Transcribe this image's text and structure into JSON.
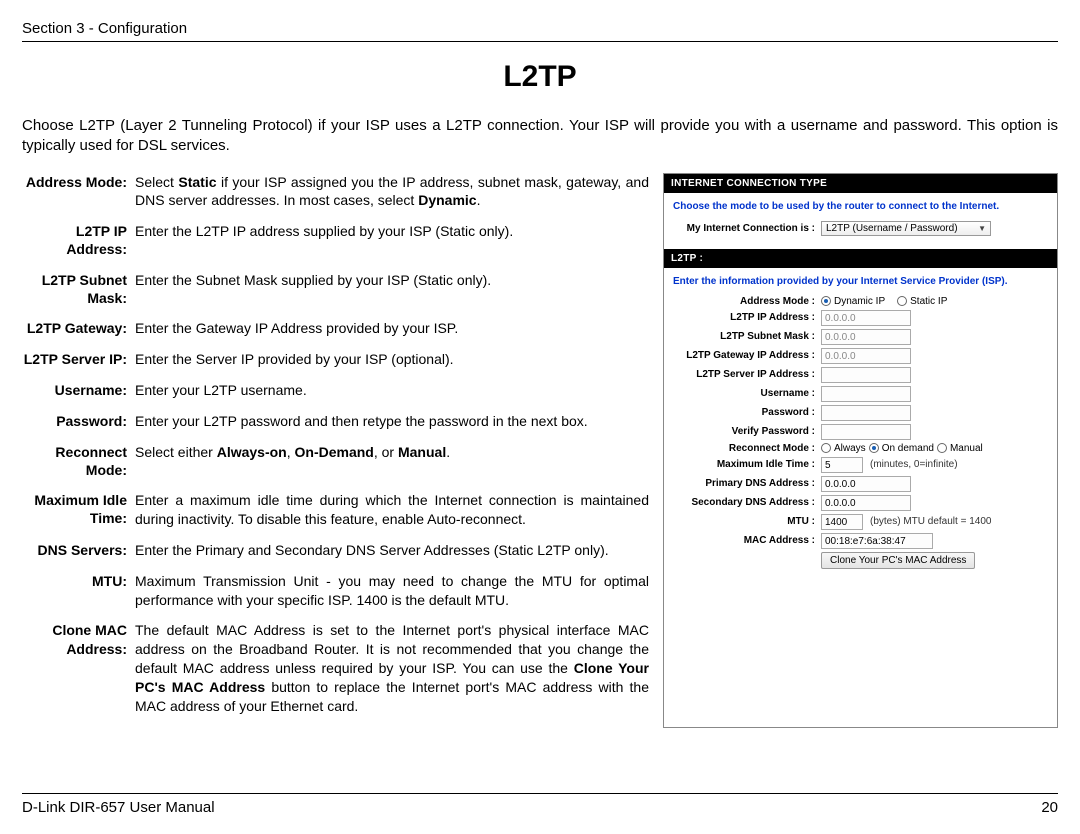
{
  "header": {
    "section": "Section 3 - Configuration"
  },
  "title": "L2TP",
  "intro": "Choose L2TP (Layer 2 Tunneling Protocol) if your ISP uses a L2TP connection. Your ISP will provide you with a username and password. This option is typically used for DSL services.",
  "defs": [
    {
      "label": "Address Mode:",
      "html": "Select <b>Static</b> if your ISP assigned you the IP address, subnet mask, gateway, and DNS server addresses. In most cases, select <b>Dynamic</b>."
    },
    {
      "label": "L2TP IP Address:",
      "html": "Enter the L2TP IP address supplied by your ISP (Static only)."
    },
    {
      "label": "L2TP Subnet Mask:",
      "html": "Enter the Subnet Mask supplied by your ISP (Static only)."
    },
    {
      "label": "L2TP Gateway:",
      "html": "Enter the Gateway IP Address provided by your ISP."
    },
    {
      "label": "L2TP Server IP:",
      "html": "Enter the Server IP provided by your ISP (optional)."
    },
    {
      "label": "Username:",
      "html": "Enter your L2TP username."
    },
    {
      "label": "Password:",
      "html": "Enter your L2TP password and then retype the password in the next box."
    },
    {
      "label": "Reconnect Mode:",
      "html": "Select either <b>Always-on</b>, <b>On-Demand</b>, or <b>Manual</b>."
    },
    {
      "label": "Maximum Idle Time:",
      "html": "Enter a maximum idle time during which the Internet connection is maintained during inactivity. To disable this feature, enable Auto-reconnect."
    },
    {
      "label": "DNS Servers:",
      "html": "Enter the Primary and Secondary DNS Server Addresses (Static L2TP only)."
    },
    {
      "label": "MTU:",
      "html": "Maximum Transmission Unit - you may need to change the MTU for optimal performance with your specific ISP. 1400 is the default MTU."
    },
    {
      "label": "Clone MAC Address:",
      "html": "The default MAC Address is set to the Internet port's physical interface MAC address on the Broadband Router. It is not recommended that you change the default MAC address unless required by your ISP. You can use the <b>Clone Your PC's MAC Address</b> button to replace the Internet port's MAC address with the MAC address of your Ethernet card."
    }
  ],
  "panel": {
    "section1_title": "INTERNET CONNECTION TYPE",
    "section1_instr": "Choose the mode to be used by the router to connect to the Internet.",
    "conn_label": "My Internet Connection is :",
    "conn_value": "L2TP (Username / Password)",
    "section2_title": "L2TP :",
    "section2_instr": "Enter the information provided by your Internet Service Provider (ISP).",
    "addr_mode_label": "Address Mode :",
    "addr_mode_opts": {
      "dynamic": "Dynamic IP",
      "static": "Static IP"
    },
    "fields": {
      "l2tp_ip": {
        "label": "L2TP IP Address :",
        "value": "0.0.0.0"
      },
      "l2tp_mask": {
        "label": "L2TP Subnet Mask :",
        "value": "0.0.0.0"
      },
      "l2tp_gw": {
        "label": "L2TP Gateway IP Address :",
        "value": "0.0.0.0"
      },
      "l2tp_srv": {
        "label": "L2TP Server IP Address :",
        "value": ""
      },
      "user": {
        "label": "Username :",
        "value": ""
      },
      "pass": {
        "label": "Password :",
        "value": ""
      },
      "vpass": {
        "label": "Verify Password :",
        "value": ""
      }
    },
    "reconnect": {
      "label": "Reconnect Mode :",
      "always": "Always",
      "ondemand": "On demand",
      "manual": "Manual"
    },
    "idle": {
      "label": "Maximum Idle Time :",
      "value": "5",
      "hint": "(minutes, 0=infinite)"
    },
    "pdns": {
      "label": "Primary DNS Address :",
      "value": "0.0.0.0"
    },
    "sdns": {
      "label": "Secondary DNS Address :",
      "value": "0.0.0.0"
    },
    "mtu": {
      "label": "MTU :",
      "value": "1400",
      "hint": "(bytes) MTU default = 1400"
    },
    "mac": {
      "label": "MAC Address :",
      "value": "00:18:e7:6a:38:47"
    },
    "clone_btn": "Clone Your PC's MAC Address"
  },
  "footer": {
    "left": "D-Link DIR-657 User Manual",
    "page": "20"
  }
}
